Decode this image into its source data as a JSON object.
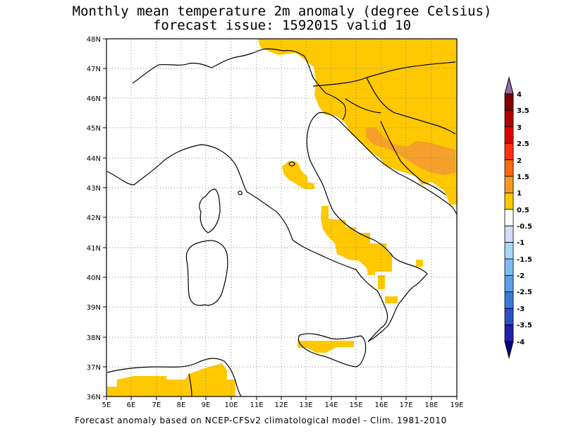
{
  "title_line1": "Monthly mean temperature 2m anomaly (degree Celsius)",
  "title_line2": "forecast issue: 1592015 valid 10",
  "footer": "Forecast anomaly based on NCEP-CFSv2 climatological model - Clim. 1981-2010",
  "map": {
    "lon_range": [
      5,
      19
    ],
    "lat_range": [
      36,
      48
    ],
    "lon_labels": [
      "5E",
      "6E",
      "7E",
      "8E",
      "9E",
      "10E",
      "11E",
      "12E",
      "13E",
      "14E",
      "15E",
      "16E",
      "17E",
      "18E",
      "19E"
    ],
    "lat_labels": [
      "36N",
      "37N",
      "38N",
      "39N",
      "40N",
      "41N",
      "42N",
      "43N",
      "44N",
      "45N",
      "46N",
      "47N",
      "48N"
    ],
    "grid": "dotted",
    "anomaly_colors": {
      "0.5-1": "#ffc800",
      "1-1.5": "#f5a02a"
    }
  },
  "colorbar": {
    "levels": [
      "4",
      "3.5",
      "3",
      "2.5",
      "2",
      "1.5",
      "1",
      "0.5",
      "-0.5",
      "-1",
      "-1.5",
      "-2",
      "-2.5",
      "-3",
      "-3.5",
      "-4"
    ],
    "colors": [
      "#800000",
      "#b40000",
      "#e00000",
      "#ff3010",
      "#ff6a10",
      "#f59a20",
      "#ffc800",
      "#ffffff",
      "#d8d8f8",
      "#a8d8f8",
      "#80bcf0",
      "#5aa0e8",
      "#3a7ad8",
      "#2a50c8",
      "#2020a8"
    ],
    "top_cap": "#8f70a8",
    "bottom_cap": "#000080"
  }
}
